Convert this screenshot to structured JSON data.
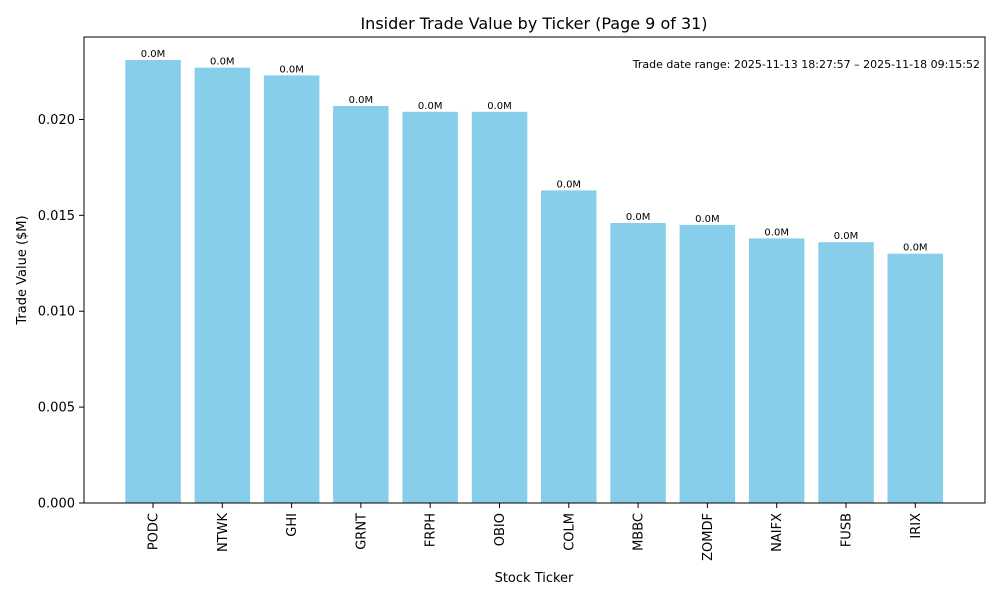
{
  "chart_data": {
    "type": "bar",
    "title": "Insider Trade Value by Ticker (Page 9 of 31)",
    "xlabel": "Stock Ticker",
    "ylabel": "Trade Value ($M)",
    "annotation": "Trade date range: 2025-11-13 18:27:57 – 2025-11-18 09:15:52",
    "categories": [
      "PODC",
      "NTWK",
      "GHI",
      "GRNT",
      "FRPH",
      "OBIO",
      "COLM",
      "MBBC",
      "ZOMDF",
      "NAIFX",
      "FUSB",
      "IRIX"
    ],
    "values": [
      0.0231,
      0.0227,
      0.0223,
      0.0207,
      0.0204,
      0.0204,
      0.0163,
      0.0146,
      0.0145,
      0.0138,
      0.0136,
      0.013
    ],
    "data_labels": [
      "0.0M",
      "0.0M",
      "0.0M",
      "0.0M",
      "0.0M",
      "0.0M",
      "0.0M",
      "0.0M",
      "0.0M",
      "0.0M",
      "0.0M",
      "0.0M"
    ],
    "ylim": [
      0,
      0.0243
    ],
    "yticks": [
      0.0,
      0.005,
      0.01,
      0.015,
      0.02
    ],
    "ytick_labels": [
      "0.000",
      "0.005",
      "0.010",
      "0.015",
      "0.020"
    ],
    "grid": false,
    "bar_color": "#87ceeb"
  }
}
